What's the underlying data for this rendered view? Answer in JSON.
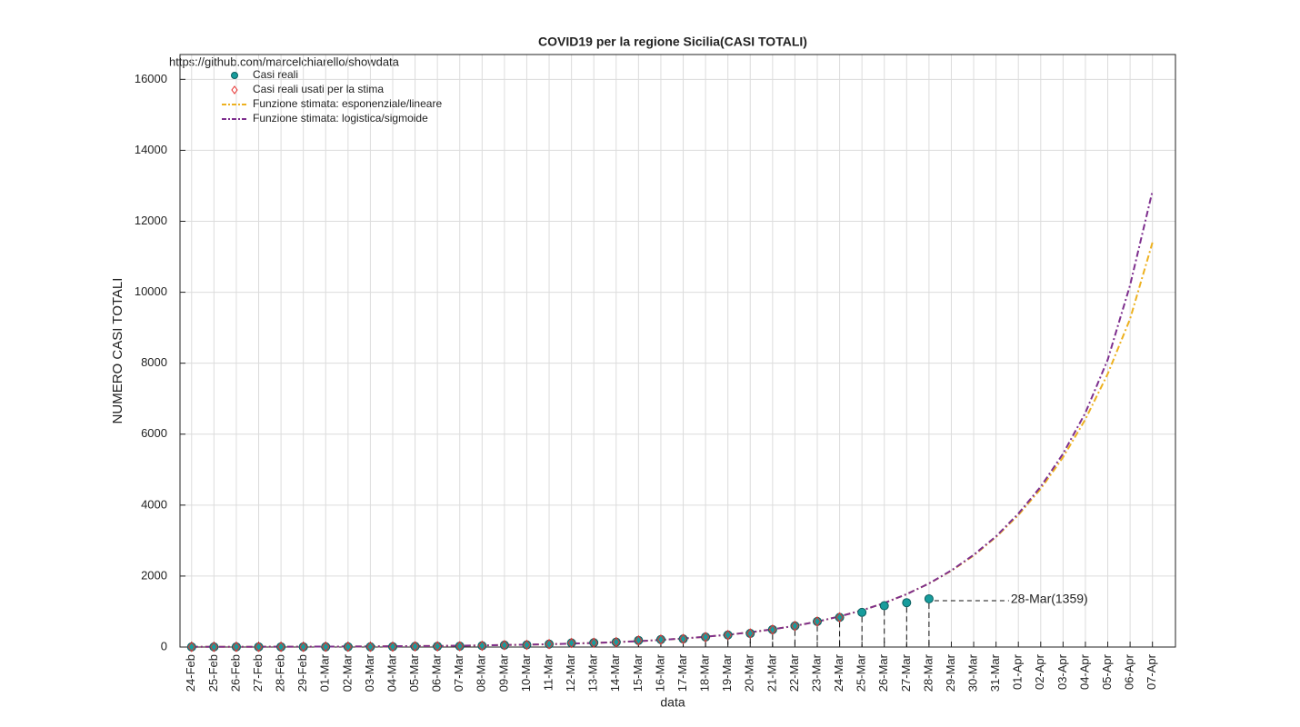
{
  "chart_data": {
    "type": "line",
    "title": "COVID19 per la regione Sicilia(CASI TOTALI)",
    "subtitle": "https://github.com/marcelchiarello/showdata",
    "x_label": "data",
    "y_label": "NUMERO CASI TOTALI",
    "annotation": "28-Mar(1359)",
    "grid": true,
    "legend": "upper left",
    "categories": [
      "24-Feb",
      "25-Feb",
      "26-Feb",
      "27-Feb",
      "28-Feb",
      "29-Feb",
      "01-Mar",
      "02-Mar",
      "03-Mar",
      "04-Mar",
      "05-Mar",
      "06-Mar",
      "07-Mar",
      "08-Mar",
      "09-Mar",
      "10-Mar",
      "11-Mar",
      "12-Mar",
      "13-Mar",
      "14-Mar",
      "15-Mar",
      "16-Mar",
      "17-Mar",
      "18-Mar",
      "19-Mar",
      "20-Mar",
      "21-Mar",
      "22-Mar",
      "23-Mar",
      "24-Mar",
      "25-Mar",
      "26-Mar",
      "27-Mar",
      "28-Mar",
      "29-Mar",
      "30-Mar",
      "31-Mar",
      "01-Apr",
      "02-Apr",
      "03-Apr",
      "04-Apr",
      "05-Apr",
      "06-Apr",
      "07-Apr"
    ],
    "ylim": [
      0,
      16700
    ],
    "yticks": [
      0,
      2000,
      4000,
      6000,
      8000,
      10000,
      12000,
      14000,
      16000
    ],
    "series": [
      {
        "name": "Casi reali",
        "color": "#179c9c",
        "style": "dots",
        "values": [
          3,
          3,
          4,
          4,
          4,
          4,
          5,
          6,
          7,
          9,
          18,
          20,
          24,
          35,
          53,
          61,
          83,
          115,
          121,
          139,
          187,
          211,
          228,
          282,
          340,
          383,
          491,
          596,
          721,
          835,
          977,
          1164,
          1250,
          1359,
          null,
          null,
          null,
          null,
          null,
          null,
          null,
          null,
          null,
          null
        ]
      },
      {
        "name": "Casi reali usati per la stima",
        "color": "#e8312f",
        "style": "diamonds",
        "values": [
          3,
          3,
          4,
          4,
          4,
          4,
          5,
          6,
          7,
          9,
          18,
          20,
          24,
          35,
          53,
          61,
          83,
          115,
          121,
          139,
          187,
          211,
          228,
          282,
          340,
          383,
          491,
          596,
          721,
          835,
          null,
          null,
          null,
          null,
          null,
          null,
          null,
          null,
          null,
          null,
          null,
          null,
          null,
          null
        ]
      },
      {
        "name": "Funzione stimata: esponenziale/lineare",
        "color": "#edb120",
        "style": "dashed",
        "values": [
          4,
          5,
          6,
          7,
          9,
          11,
          13,
          15,
          19,
          22,
          27,
          32,
          39,
          47,
          56,
          67,
          80,
          97,
          116,
          139,
          167,
          200,
          240,
          289,
          346,
          416,
          499,
          598,
          718,
          862,
          1035,
          1240,
          1490,
          1790,
          2150,
          2580,
          3100,
          3720,
          4460,
          5350,
          6420,
          7700,
          9250,
          11400
        ]
      },
      {
        "name": "Funzione stimata: logistica/sigmoide",
        "color": "#7e2f8e",
        "style": "dashed",
        "values": [
          4,
          5,
          6,
          7,
          9,
          11,
          13,
          15,
          19,
          22,
          27,
          32,
          39,
          47,
          56,
          67,
          80,
          97,
          116,
          139,
          167,
          200,
          240,
          289,
          346,
          416,
          499,
          598,
          718,
          862,
          1035,
          1240,
          1490,
          1790,
          2160,
          2600,
          3120,
          3760,
          4520,
          5450,
          6600,
          8100,
          10200,
          12850
        ]
      }
    ]
  }
}
